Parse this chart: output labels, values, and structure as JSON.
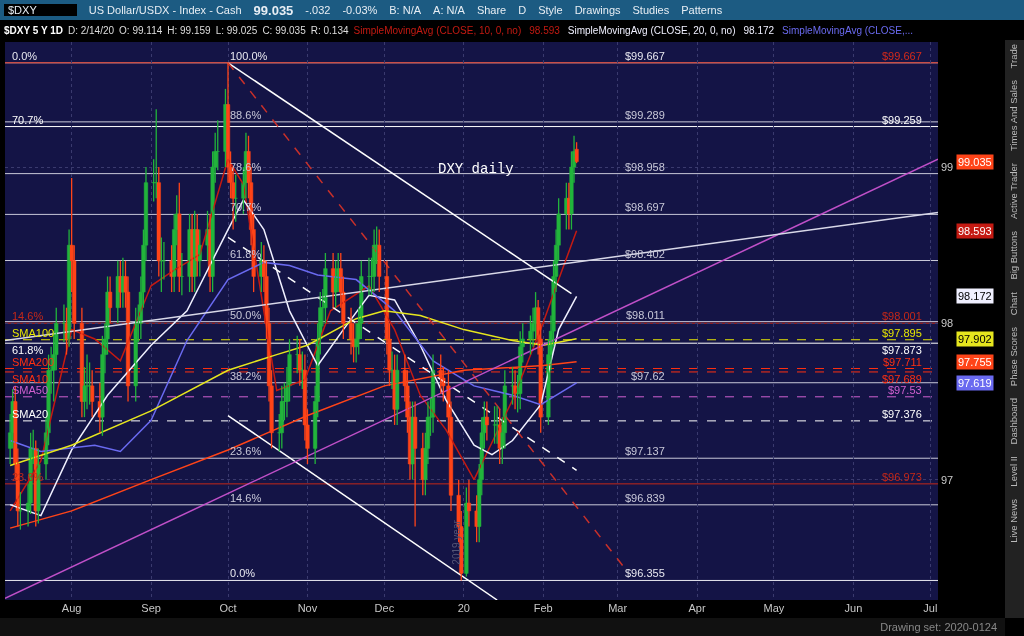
{
  "chart_data": {
    "type": "candlestick",
    "title": "$DXY 5 Y 1D",
    "annotations": [
      "$DXY",
      "US Dollar/USDX - Index - Cash",
      "99.035",
      "-.032",
      "-0.03%",
      "B: N/A",
      "A: N/A",
      "Share",
      "D",
      "Style",
      "Drawings",
      "Studies",
      "Patterns",
      "D: 2/14/20",
      "O: 99.114",
      "H: 99.159",
      "L: 99.025",
      "C: 99.035",
      "R: 0.134",
      "Trade",
      "Times And Sales",
      "Active Trader",
      "Big Buttons",
      "Chart",
      "Phase Scores",
      "Dashboard",
      "Level II",
      "Live News",
      "Drawing set: 2020-0124",
      "DXY daily",
      "2019 year",
      "99.035",
      "98.593",
      "98.172",
      "98.593",
      "98.172",
      "97.619",
      "97.902",
      "97.755",
      {
        "text": "100.0%",
        "x": "2019-10-01",
        "y": 99.667
      },
      {
        "text": "88.6%",
        "x": "2019-10-01",
        "y": 99.289
      },
      {
        "text": "78.6%",
        "x": "2019-10-01",
        "y": 98.958
      },
      {
        "text": "70.7%",
        "x": "2019-10-01",
        "y": 98.697
      },
      {
        "text": "61.8%",
        "x": "2019-10-01",
        "y": 98.402
      },
      {
        "text": "50.0%",
        "x": "2019-10-01",
        "y": 98.011
      },
      {
        "text": "38.2%",
        "x": "2019-10-01",
        "y": 97.62
      },
      {
        "text": "23.6%",
        "x": "2019-10-01",
        "y": 97.137
      },
      {
        "text": "14.6%",
        "x": "2019-10-01",
        "y": 96.839
      },
      {
        "text": "0.0%",
        "x": "2019-10-01",
        "y": 96.355
      },
      {
        "text": "0.0%",
        "x": "2019-07-08",
        "y": 99.667
      },
      {
        "text": "70.7%",
        "x": "2019-07-08",
        "y": 99.259
      },
      {
        "text": "14.6%",
        "x": "2019-07-08",
        "y": 98.001
      },
      {
        "text": "SMA100",
        "x": "2019-07-08",
        "y": 97.895
      },
      {
        "text": "61.8%",
        "x": "2019-07-08",
        "y": 97.873
      },
      {
        "text": "SMA200",
        "x": "2019-07-08",
        "y": 97.711
      },
      {
        "text": "SMA10",
        "x": "2019-07-08",
        "y": 97.689
      },
      {
        "text": "SMA50",
        "x": "2019-07-08",
        "y": 97.53
      },
      {
        "text": "SMA20",
        "x": "2019-07-08",
        "y": 97.376
      },
      {
        "text": "23.6%",
        "x": "2019-07-08",
        "y": 96.973
      }
    ],
    "x": [
      "2019-07-08",
      "2019-07-09",
      "2019-07-10",
      "2019-07-11",
      "2019-07-12",
      "2019-07-15",
      "2019-07-16",
      "2019-07-17",
      "2019-07-18",
      "2019-07-19",
      "2019-07-22",
      "2019-07-23",
      "2019-07-24",
      "2019-07-25",
      "2019-07-26",
      "2019-07-29",
      "2019-07-30",
      "2019-07-31",
      "2019-08-01",
      "2019-08-02",
      "2019-08-05",
      "2019-08-06",
      "2019-08-07",
      "2019-08-08",
      "2019-08-09",
      "2019-08-12",
      "2019-08-13",
      "2019-08-14",
      "2019-08-15",
      "2019-08-16",
      "2019-08-19",
      "2019-08-20",
      "2019-08-21",
      "2019-08-22",
      "2019-08-23",
      "2019-08-26",
      "2019-08-27",
      "2019-08-28",
      "2019-08-29",
      "2019-08-30",
      "2019-09-02",
      "2019-09-03",
      "2019-09-04",
      "2019-09-05",
      "2019-09-06",
      "2019-09-09",
      "2019-09-10",
      "2019-09-11",
      "2019-09-12",
      "2019-09-13",
      "2019-09-16",
      "2019-09-17",
      "2019-09-18",
      "2019-09-19",
      "2019-09-20",
      "2019-09-23",
      "2019-09-24",
      "2019-09-25",
      "2019-09-26",
      "2019-09-27",
      "2019-09-30",
      "2019-10-01",
      "2019-10-02",
      "2019-10-03",
      "2019-10-04",
      "2019-10-07",
      "2019-10-08",
      "2019-10-09",
      "2019-10-10",
      "2019-10-11",
      "2019-10-14",
      "2019-10-15",
      "2019-10-16",
      "2019-10-17",
      "2019-10-18",
      "2019-10-21",
      "2019-10-22",
      "2019-10-23",
      "2019-10-24",
      "2019-10-25",
      "2019-10-28",
      "2019-10-29",
      "2019-10-30",
      "2019-10-31",
      "2019-11-01",
      "2019-11-04",
      "2019-11-05",
      "2019-11-06",
      "2019-11-07",
      "2019-11-08",
      "2019-11-11",
      "2019-11-12",
      "2019-11-13",
      "2019-11-14",
      "2019-11-15",
      "2019-11-18",
      "2019-11-19",
      "2019-11-20",
      "2019-11-21",
      "2019-11-22",
      "2019-11-25",
      "2019-11-26",
      "2019-11-27",
      "2019-11-28",
      "2019-11-29",
      "2019-12-02",
      "2019-12-03",
      "2019-12-04",
      "2019-12-05",
      "2019-12-06",
      "2019-12-09",
      "2019-12-10",
      "2019-12-11",
      "2019-12-12",
      "2019-12-13",
      "2019-12-16",
      "2019-12-17",
      "2019-12-18",
      "2019-12-19",
      "2019-12-20",
      "2019-12-23",
      "2019-12-24",
      "2019-12-26",
      "2019-12-27",
      "2019-12-30",
      "2019-12-31",
      "2020-01-02",
      "2020-01-03",
      "2020-01-06",
      "2020-01-07",
      "2020-01-08",
      "2020-01-09",
      "2020-01-10",
      "2020-01-13",
      "2020-01-14",
      "2020-01-15",
      "2020-01-16",
      "2020-01-17",
      "2020-01-20",
      "2020-01-21",
      "2020-01-22",
      "2020-01-23",
      "2020-01-24",
      "2020-01-27",
      "2020-01-28",
      "2020-01-29",
      "2020-01-30",
      "2020-01-31",
      "2020-02-03",
      "2020-02-04",
      "2020-02-05",
      "2020-02-06",
      "2020-02-07",
      "2020-02-10",
      "2020-02-11",
      "2020-02-12",
      "2020-02-13",
      "2020-02-14"
    ],
    "ohlc": [
      [
        97.2,
        97.42,
        97.1,
        97.3
      ],
      [
        97.3,
        97.58,
        97.2,
        97.5
      ],
      [
        97.5,
        97.6,
        97.0,
        97.1
      ],
      [
        97.1,
        97.2,
        96.7,
        96.8
      ],
      [
        96.8,
        96.92,
        96.68,
        96.8
      ],
      [
        96.8,
        96.97,
        96.7,
        96.85
      ],
      [
        96.85,
        97.3,
        96.78,
        97.2
      ],
      [
        97.2,
        97.32,
        97.1,
        97.2
      ],
      [
        97.2,
        97.25,
        96.7,
        96.8
      ],
      [
        96.8,
        97.2,
        96.72,
        97.1
      ],
      [
        97.1,
        97.4,
        97.0,
        97.3
      ],
      [
        97.3,
        97.8,
        97.22,
        97.7
      ],
      [
        97.7,
        97.85,
        97.55,
        97.7
      ],
      [
        97.7,
        97.95,
        97.5,
        97.8
      ],
      [
        97.8,
        98.1,
        97.7,
        98.0
      ],
      [
        98.0,
        98.12,
        97.88,
        98.0
      ],
      [
        98.0,
        98.1,
        97.8,
        97.9
      ],
      [
        97.9,
        98.6,
        97.85,
        98.5
      ],
      [
        98.5,
        98.93,
        98.2,
        98.4
      ],
      [
        98.4,
        98.5,
        97.9,
        98.0
      ],
      [
        98.0,
        98.1,
        97.4,
        97.5
      ],
      [
        97.5,
        97.72,
        97.4,
        97.6
      ],
      [
        97.6,
        97.8,
        97.45,
        97.6
      ],
      [
        97.6,
        97.75,
        97.48,
        97.6
      ],
      [
        97.6,
        97.7,
        97.4,
        97.5
      ],
      [
        97.5,
        97.62,
        97.3,
        97.4
      ],
      [
        97.4,
        97.92,
        97.28,
        97.8
      ],
      [
        97.8,
        98.0,
        97.68,
        97.9
      ],
      [
        97.9,
        98.3,
        97.8,
        98.2
      ],
      [
        98.2,
        98.3,
        98.0,
        98.1
      ],
      [
        98.1,
        98.4,
        98.0,
        98.3
      ],
      [
        98.3,
        98.4,
        98.1,
        98.2
      ],
      [
        98.2,
        98.42,
        98.1,
        98.3
      ],
      [
        98.3,
        98.4,
        98.1,
        98.2
      ],
      [
        98.2,
        98.3,
        97.5,
        97.6
      ],
      [
        97.6,
        98.1,
        97.5,
        98.0
      ],
      [
        98.0,
        98.12,
        97.88,
        98.0
      ],
      [
        98.0,
        98.3,
        97.9,
        98.2
      ],
      [
        98.2,
        98.6,
        98.1,
        98.5
      ],
      [
        98.5,
        99.0,
        98.4,
        98.9
      ],
      [
        98.9,
        99.05,
        98.78,
        98.9
      ],
      [
        98.9,
        99.37,
        98.8,
        98.9
      ],
      [
        98.9,
        99.0,
        98.3,
        98.4
      ],
      [
        98.4,
        98.55,
        98.2,
        98.4
      ],
      [
        98.4,
        98.52,
        98.28,
        98.4
      ],
      [
        98.4,
        98.5,
        98.2,
        98.3
      ],
      [
        98.3,
        98.7,
        98.2,
        98.6
      ],
      [
        98.6,
        98.82,
        98.5,
        98.7
      ],
      [
        98.7,
        98.9,
        98.2,
        98.3
      ],
      [
        98.3,
        98.45,
        98.18,
        98.3
      ],
      [
        98.3,
        98.7,
        98.2,
        98.6
      ],
      [
        98.6,
        98.7,
        98.2,
        98.3
      ],
      [
        98.3,
        98.72,
        98.2,
        98.6
      ],
      [
        98.6,
        98.7,
        98.3,
        98.4
      ],
      [
        98.4,
        98.6,
        98.3,
        98.5
      ],
      [
        98.5,
        98.72,
        98.4,
        98.6
      ],
      [
        98.6,
        98.7,
        98.2,
        98.3
      ],
      [
        98.3,
        99.1,
        98.2,
        99.0
      ],
      [
        99.0,
        99.22,
        98.9,
        99.1
      ],
      [
        99.1,
        99.3,
        98.98,
        99.1
      ],
      [
        99.1,
        99.5,
        99.0,
        99.4
      ],
      [
        99.4,
        99.667,
        98.9,
        99.0
      ],
      [
        99.0,
        99.1,
        98.8,
        98.9
      ],
      [
        98.9,
        99.0,
        98.6,
        98.8
      ],
      [
        98.8,
        98.95,
        98.65,
        98.8
      ],
      [
        98.8,
        99.0,
        98.7,
        98.9
      ],
      [
        98.9,
        99.22,
        98.8,
        99.1
      ],
      [
        99.1,
        99.2,
        98.8,
        98.9
      ],
      [
        98.9,
        99.0,
        98.5,
        98.6
      ],
      [
        98.6,
        98.7,
        98.2,
        98.3
      ],
      [
        98.3,
        98.52,
        98.2,
        98.4
      ],
      [
        98.4,
        98.5,
        98.2,
        98.3
      ],
      [
        98.3,
        98.4,
        97.9,
        98.0
      ],
      [
        98.0,
        98.1,
        97.5,
        97.6
      ],
      [
        97.6,
        97.7,
        97.2,
        97.3
      ],
      [
        97.3,
        97.42,
        97.18,
        97.3
      ],
      [
        97.3,
        97.6,
        97.2,
        97.5
      ],
      [
        97.5,
        97.62,
        97.38,
        97.5
      ],
      [
        97.5,
        97.72,
        97.4,
        97.6
      ],
      [
        97.6,
        97.9,
        97.5,
        97.8
      ],
      [
        97.8,
        97.92,
        97.68,
        97.8
      ],
      [
        97.8,
        97.9,
        97.6,
        97.7
      ],
      [
        97.7,
        97.82,
        97.58,
        97.7
      ],
      [
        97.7,
        97.8,
        97.25,
        97.35
      ],
      [
        97.35,
        97.45,
        97.1,
        97.2
      ],
      [
        97.2,
        97.6,
        97.1,
        97.5
      ],
      [
        97.5,
        98.0,
        97.4,
        97.9
      ],
      [
        97.9,
        98.2,
        97.8,
        98.1
      ],
      [
        98.1,
        98.22,
        97.98,
        98.1
      ],
      [
        98.1,
        98.45,
        98.0,
        98.35
      ],
      [
        98.35,
        98.45,
        98.1,
        98.2
      ],
      [
        98.2,
        98.4,
        98.1,
        98.3
      ],
      [
        98.3,
        98.45,
        98.2,
        98.35
      ],
      [
        98.35,
        98.45,
        98.1,
        98.2
      ],
      [
        98.2,
        98.3,
        97.9,
        98.0
      ],
      [
        98.0,
        98.1,
        97.8,
        97.9
      ],
      [
        97.9,
        98.0,
        97.75,
        97.85
      ],
      [
        97.85,
        98.0,
        97.75,
        97.9
      ],
      [
        97.9,
        98.1,
        97.8,
        98.0
      ],
      [
        98.0,
        98.4,
        97.9,
        98.3
      ],
      [
        98.3,
        98.42,
        98.18,
        98.3
      ],
      [
        98.3,
        98.42,
        98.18,
        98.3
      ],
      [
        98.3,
        98.6,
        98.2,
        98.5
      ],
      [
        98.5,
        98.62,
        98.38,
        98.5
      ],
      [
        98.5,
        98.6,
        98.2,
        98.3
      ],
      [
        98.3,
        98.4,
        97.8,
        97.9
      ],
      [
        97.9,
        98.0,
        97.6,
        97.7
      ],
      [
        97.7,
        97.82,
        97.58,
        97.7
      ],
      [
        97.7,
        97.8,
        97.35,
        97.45
      ],
      [
        97.45,
        97.8,
        97.35,
        97.7
      ],
      [
        97.7,
        97.8,
        97.5,
        97.6
      ],
      [
        97.6,
        97.7,
        97.3,
        97.4
      ],
      [
        97.4,
        97.5,
        97.0,
        97.1
      ],
      [
        97.1,
        97.5,
        97.0,
        97.4
      ],
      [
        97.4,
        97.5,
        96.7,
        97.2
      ],
      [
        97.2,
        97.3,
        96.9,
        97.0
      ],
      [
        97.0,
        97.3,
        96.9,
        97.2
      ],
      [
        97.2,
        97.5,
        97.1,
        97.4
      ],
      [
        97.4,
        97.52,
        97.28,
        97.4
      ],
      [
        97.4,
        97.8,
        97.3,
        97.7
      ],
      [
        97.7,
        97.8,
        97.55,
        97.65
      ],
      [
        97.65,
        97.72,
        97.5,
        97.6
      ],
      [
        97.6,
        97.7,
        97.3,
        97.4
      ],
      [
        97.4,
        97.5,
        96.8,
        96.9
      ],
      [
        96.9,
        97.0,
        96.6,
        96.7
      ],
      [
        96.7,
        96.8,
        96.355,
        96.4
      ],
      [
        96.4,
        96.95,
        96.38,
        96.85
      ],
      [
        96.85,
        97.0,
        96.7,
        96.8
      ],
      [
        96.8,
        96.9,
        96.6,
        96.7
      ],
      [
        96.7,
        97.1,
        96.6,
        97.0
      ],
      [
        97.0,
        97.4,
        96.9,
        97.3
      ],
      [
        97.3,
        97.5,
        97.2,
        97.4
      ],
      [
        97.4,
        97.5,
        97.25,
        97.35
      ],
      [
        97.35,
        97.47,
        97.23,
        97.35
      ],
      [
        97.35,
        97.47,
        97.23,
        97.35
      ],
      [
        97.35,
        97.45,
        97.1,
        97.2
      ],
      [
        97.2,
        97.4,
        97.1,
        97.3
      ],
      [
        97.3,
        97.7,
        97.2,
        97.6
      ],
      [
        97.6,
        97.72,
        97.48,
        97.6
      ],
      [
        97.6,
        97.7,
        97.45,
        97.55
      ],
      [
        97.55,
        97.67,
        97.43,
        97.55
      ],
      [
        97.55,
        97.95,
        97.45,
        97.85
      ],
      [
        97.85,
        98.0,
        97.75,
        97.9
      ],
      [
        97.9,
        98.05,
        97.8,
        97.95
      ],
      [
        97.95,
        98.1,
        97.85,
        98.0
      ],
      [
        98.0,
        98.2,
        97.9,
        98.1
      ],
      [
        98.1,
        98.15,
        97.8,
        97.9
      ],
      [
        97.9,
        98.0,
        97.3,
        97.4
      ],
      [
        97.4,
        97.9,
        97.35,
        97.8
      ],
      [
        97.8,
        98.05,
        97.7,
        97.95
      ],
      [
        97.95,
        98.4,
        97.85,
        98.3
      ],
      [
        98.3,
        98.6,
        98.2,
        98.5
      ],
      [
        98.5,
        98.8,
        98.4,
        98.7
      ],
      [
        98.7,
        98.9,
        98.6,
        98.8
      ],
      [
        98.8,
        98.9,
        98.6,
        98.7
      ],
      [
        98.7,
        99.1,
        98.6,
        99.0
      ],
      [
        99.0,
        99.2,
        98.9,
        99.1
      ],
      [
        99.114,
        99.159,
        99.025,
        99.035
      ]
    ],
    "series": [
      {
        "type": "line",
        "name": "SimpleMovingAvg (CLOSE, 10, 0, no)",
        "color": "#c41a12",
        "x": [
          "2019-07-08",
          "2019-07-20",
          "2019-08-01",
          "2019-08-10",
          "2019-08-20",
          "2019-09-01",
          "2019-09-10",
          "2019-09-20",
          "2019-10-01",
          "2019-10-07",
          "2019-10-20",
          "2019-10-31",
          "2019-11-10",
          "2019-11-25",
          "2019-12-05",
          "2019-12-15",
          "2019-12-25",
          "2020-01-05",
          "2020-01-20",
          "2020-01-31",
          "2020-02-07",
          "2020-02-14"
        ],
        "values": [
          96.8,
          97.12,
          97.96,
          97.9,
          97.76,
          98.24,
          98.34,
          98.44,
          99.05,
          98.89,
          97.57,
          97.64,
          98.08,
          98.24,
          97.96,
          97.54,
          97.32,
          97.0,
          97.51,
          97.96,
          98.28,
          98.593
        ]
      },
      {
        "type": "line",
        "name": "SimpleMovingAvg (CLOSE, 20, 0, no)",
        "color": "#f0f0ff",
        "x": [
          "2019-07-08",
          "2019-07-20",
          "2019-08-01",
          "2019-08-15",
          "2019-09-01",
          "2019-09-15",
          "2019-10-01",
          "2019-10-07",
          "2019-10-15",
          "2019-10-25",
          "2019-11-05",
          "2019-11-15",
          "2019-11-25",
          "2019-12-05",
          "2019-12-15",
          "2019-12-25",
          "2020-01-05",
          "2020-01-12",
          "2020-01-20",
          "2020-01-31",
          "2020-02-07",
          "2020-02-14"
        ],
        "values": [
          96.84,
          96.77,
          97.19,
          97.54,
          97.86,
          98.08,
          98.6,
          98.79,
          98.6,
          98.08,
          97.73,
          97.96,
          98.18,
          98.15,
          97.86,
          97.51,
          97.22,
          97.16,
          97.25,
          97.48,
          97.96,
          98.172
        ]
      },
      {
        "type": "line",
        "name": "SimpleMovingAvg (CLOSE,...",
        "color": "#6a6af0",
        "x": [
          "2019-07-08",
          "2019-07-20",
          "2019-08-10",
          "2019-08-20",
          "2019-09-01",
          "2019-09-15",
          "2019-10-01",
          "2019-10-15",
          "2019-10-25",
          "2019-11-05",
          "2019-11-20",
          "2019-12-05",
          "2019-12-20",
          "2020-01-05",
          "2020-01-20",
          "2020-01-31",
          "2020-02-14"
        ],
        "values": [
          97.25,
          97.18,
          97.22,
          97.18,
          97.38,
          97.89,
          98.28,
          98.39,
          98.37,
          98.31,
          98.28,
          98.08,
          97.76,
          97.6,
          97.54,
          97.48,
          97.619
        ]
      },
      {
        "type": "line",
        "color": "#e6e61e",
        "x": [
          "2019-07-08",
          "2019-08-01",
          "2019-09-01",
          "2019-10-01",
          "2019-10-20",
          "2019-11-01",
          "2019-11-20",
          "2019-12-01",
          "2019-12-15",
          "2020-01-01",
          "2020-01-20",
          "2020-02-01",
          "2020-02-14"
        ],
        "values": [
          97.09,
          97.22,
          97.44,
          97.7,
          97.8,
          97.86,
          98.03,
          98.08,
          98.05,
          97.96,
          97.89,
          97.86,
          97.902
        ]
      },
      {
        "type": "line",
        "color": "#ff4418",
        "x": [
          "2019-07-08",
          "2019-08-01",
          "2019-09-01",
          "2019-10-01",
          "2019-11-01",
          "2019-12-01",
          "2020-01-01",
          "2020-02-01",
          "2020-02-14"
        ],
        "values": [
          96.69,
          96.8,
          97.0,
          97.19,
          97.41,
          97.6,
          97.7,
          97.73,
          97.755
        ]
      },
      {
        "type": "line",
        "color": "#ffffff",
        "x": [
          "2019-10-01",
          "2020-02-12"
        ],
        "values": [
          99.667,
          98.19
        ]
      },
      {
        "type": "line",
        "color": "#ffffff",
        "x": [
          "2019-10-01",
          "2020-01-14"
        ],
        "values": [
          97.41,
          96.23
        ]
      },
      {
        "type": "line",
        "color": "#ffffff",
        "line_style": "dashed",
        "x": [
          "2019-10-01",
          "2020-02-14"
        ],
        "values": [
          98.55,
          97.06
        ]
      },
      {
        "type": "line",
        "color": "#c8302a",
        "line_style": "dashed",
        "x": [
          "2019-10-01",
          "2020-03-03"
        ],
        "values": [
          99.667,
          96.45
        ]
      },
      {
        "type": "line",
        "color": "#c050c8",
        "x": [
          "2019-07-06",
          "2020-07-04"
        ],
        "values": [
          96.24,
          99.05
        ]
      },
      {
        "type": "line",
        "color": "#d8d8e8",
        "x": [
          "2019-07-06",
          "2020-07-04"
        ],
        "values": [
          97.89,
          98.71
        ]
      }
    ],
    "xlim": [
      "2019-07-06",
      "2020-07-04"
    ],
    "xticks": [
      {
        "value": "2019-08-01",
        "label": "Aug"
      },
      {
        "value": "2019-09-01",
        "label": "Sep"
      },
      {
        "value": "2019-10-01",
        "label": "Oct"
      },
      {
        "value": "2019-11-01",
        "label": "Nov"
      },
      {
        "value": "2019-12-01",
        "label": "Dec"
      },
      {
        "value": "2020-01-01",
        "label": "20"
      },
      {
        "value": "2020-02-01",
        "label": "Feb"
      },
      {
        "value": "2020-03-01",
        "label": "Mar"
      },
      {
        "value": "2020-04-01",
        "label": "Apr"
      },
      {
        "value": "2020-05-01",
        "label": "May"
      },
      {
        "value": "2020-06-01",
        "label": "Jun"
      },
      {
        "value": "2020-07-01",
        "label": "Jul"
      }
    ],
    "ylim": [
      96.23,
      99.8
    ],
    "yticks": [
      97,
      98,
      99
    ],
    "grid": true,
    "ref_lines": [
      {
        "axis": "y",
        "value": 99.667,
        "label": "$99.667",
        "color": "#e8e8f0"
      },
      {
        "axis": "y",
        "value": 99.289,
        "label": "$99.289",
        "color": "#c8c8d8"
      },
      {
        "axis": "y",
        "value": 98.958,
        "label": "$98.958",
        "color": "#c8c8d8"
      },
      {
        "axis": "y",
        "value": 98.697,
        "label": "$98.697",
        "color": "#c8c8d8"
      },
      {
        "axis": "y",
        "value": 98.402,
        "label": "$98.402",
        "color": "#c8c8d8"
      },
      {
        "axis": "y",
        "value": 98.011,
        "label": "$98.011",
        "color": "#c8c8d8"
      },
      {
        "axis": "y",
        "value": 97.62,
        "label": "$97.62",
        "color": "#c8c8d8"
      },
      {
        "axis": "y",
        "value": 97.137,
        "label": "$97.137",
        "color": "#c8c8d8"
      },
      {
        "axis": "y",
        "value": 96.839,
        "label": "$96.839",
        "color": "#c8c8d8"
      },
      {
        "axis": "y",
        "value": 96.355,
        "label": "$96.355",
        "color": "#e8e8f0"
      },
      {
        "axis": "y",
        "value": 99.667,
        "label": "$99.667",
        "color": "#d42a1a"
      },
      {
        "axis": "y",
        "value": 99.259,
        "label": "$99.259",
        "color": "#ffffff"
      },
      {
        "axis": "y",
        "value": 98.001,
        "label": "$98.001",
        "color": "#c42818"
      },
      {
        "axis": "y",
        "value": 97.895,
        "label": "$97.895",
        "color": "#e6e600",
        "line_style": "dashed"
      },
      {
        "axis": "y",
        "value": 97.873,
        "label": "$97.873",
        "color": "#ffffff"
      },
      {
        "axis": "y",
        "value": 97.711,
        "label": "$97.711",
        "color": "#ff3010",
        "line_style": "dashed"
      },
      {
        "axis": "y",
        "value": 97.689,
        "label": "$97.689",
        "color": "#ff3010",
        "line_style": "dashed"
      },
      {
        "axis": "y",
        "value": 97.53,
        "label": "$97.53",
        "color": "#d060d0",
        "line_style": "dashed"
      },
      {
        "axis": "y",
        "value": 97.376,
        "label": "$97.376",
        "color": "#ffffff",
        "line_style": "dashed"
      },
      {
        "axis": "y",
        "value": 96.973,
        "label": "$96.973",
        "color": "#c42818"
      }
    ]
  }
}
